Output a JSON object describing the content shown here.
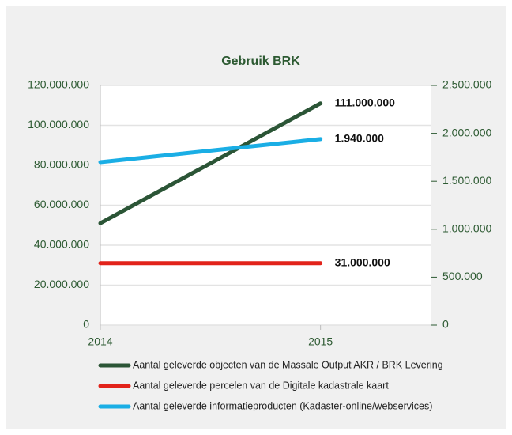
{
  "chart_data": {
    "type": "line",
    "title": "Gebruik BRK",
    "x": [
      2014,
      2015
    ],
    "xlim": [
      2014,
      2015.5
    ],
    "xticks": [
      2014,
      2015
    ],
    "ylim": [
      0,
      120000000
    ],
    "yticks": [
      0,
      {
        "value": 20000000,
        "label": "20.000.000"
      },
      {
        "value": 40000000,
        "label": "40.000.000"
      },
      {
        "value": 60000000,
        "label": "60.000.000"
      },
      {
        "value": 80000000,
        "label": "80.000.000"
      },
      {
        "value": 100000000,
        "label": "100.000.000"
      },
      {
        "value": 120000000,
        "label": "120.000.000"
      }
    ],
    "y2lim": [
      0,
      2500000
    ],
    "y2ticks": [
      0,
      {
        "value": 500000,
        "label": "500.000"
      },
      {
        "value": 1000000,
        "label": "1.000.000"
      },
      {
        "value": 1500000,
        "label": "1.500.000"
      },
      {
        "value": 2000000,
        "label": "2.000.000"
      },
      {
        "value": 2500000,
        "label": "2.500.000"
      }
    ],
    "grid": true,
    "series": [
      {
        "name": "Aantal geleverde objecten van de Massale Output AKR / BRK Levering",
        "color": "#2b5536",
        "values": [
          51000000,
          111000000
        ],
        "value_labels": [
          null,
          "111.000.000"
        ]
      },
      {
        "name": "Aantal geleverde percelen van de Digitale kadastrale kaart",
        "color": "#e2231a",
        "values": [
          31000000,
          31000000
        ],
        "value_labels": [
          null,
          "31.000.000"
        ]
      },
      {
        "name": "Aantal geleverde informatieproducten (Kadaster-online/webservices)",
        "color": "#1aaee5",
        "axis": "y2",
        "values": [
          1700000,
          1940000
        ],
        "value_labels": [
          null,
          "1.940.000"
        ]
      }
    ]
  }
}
